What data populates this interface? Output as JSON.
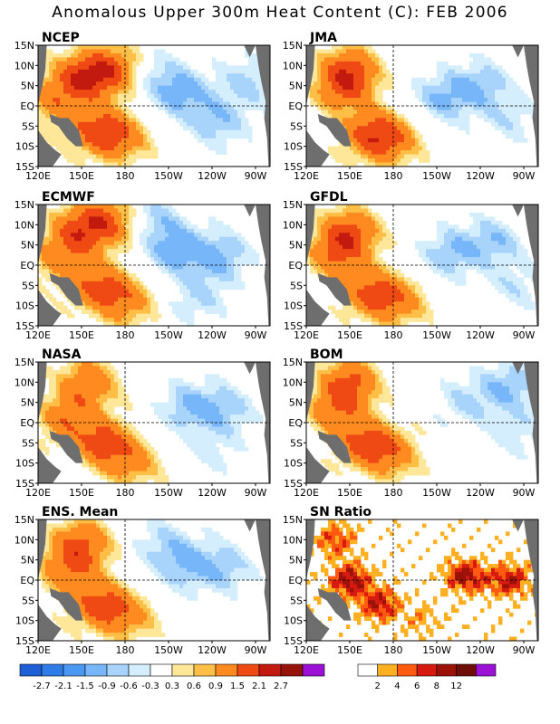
{
  "title": "Anomalous Upper 300m Heat Content (C): FEB 2006",
  "chart_data": [
    {
      "type": "heatmap",
      "title": "NCEP",
      "xticks": [
        "120E",
        "150E",
        "180",
        "150W",
        "120W",
        "90W"
      ],
      "yticks": [
        "15N",
        "10N",
        "5N",
        "EQ",
        "5S",
        "10S",
        "15S"
      ],
      "xlim": [
        120,
        280
      ],
      "ylim": [
        -15,
        15
      ],
      "features": [
        {
          "lon": 150,
          "lat": 7,
          "v": 1.8
        },
        {
          "lon": 172,
          "lat": 9,
          "v": 1.6
        },
        {
          "lon": 130,
          "lat": 1,
          "v": 1.0
        },
        {
          "lon": 160,
          "lat": -6,
          "v": 1.5
        },
        {
          "lon": 178,
          "lat": -8,
          "v": 1.1
        },
        {
          "lon": 220,
          "lat": 3,
          "v": -1.0
        },
        {
          "lon": 245,
          "lat": -4,
          "v": -0.8
        },
        {
          "lon": 200,
          "lat": 8,
          "v": -0.6
        },
        {
          "lon": 265,
          "lat": 6,
          "v": -0.7
        }
      ]
    },
    {
      "type": "heatmap",
      "title": "JMA",
      "xticks": [
        "120E",
        "150E",
        "180",
        "150W",
        "120W",
        "90W"
      ],
      "yticks": [
        "15N",
        "10N",
        "5N",
        "EQ",
        "5S",
        "10S",
        "15S"
      ],
      "xlim": [
        120,
        280
      ],
      "ylim": [
        -15,
        15
      ],
      "features": [
        {
          "lon": 150,
          "lat": 9,
          "v": 1.5
        },
        {
          "lon": 145,
          "lat": 4,
          "v": 1.2
        },
        {
          "lon": 165,
          "lat": -7,
          "v": 1.6
        },
        {
          "lon": 180,
          "lat": -9,
          "v": 1.0
        },
        {
          "lon": 215,
          "lat": 2,
          "v": -0.9
        },
        {
          "lon": 240,
          "lat": 5,
          "v": -0.8
        },
        {
          "lon": 260,
          "lat": -3,
          "v": -0.5
        }
      ]
    },
    {
      "type": "heatmap",
      "title": "ECMWF",
      "xticks": [
        "120E",
        "150E",
        "180",
        "150W",
        "120W",
        "90W"
      ],
      "yticks": [
        "15N",
        "10N",
        "5N",
        "EQ",
        "5S",
        "10S",
        "15S"
      ],
      "xlim": [
        120,
        280
      ],
      "ylim": [
        -15,
        15
      ],
      "features": [
        {
          "lon": 150,
          "lat": 9,
          "v": 1.6
        },
        {
          "lon": 170,
          "lat": 11,
          "v": 1.3
        },
        {
          "lon": 135,
          "lat": 2,
          "v": 1.1
        },
        {
          "lon": 160,
          "lat": -5,
          "v": 1.4
        },
        {
          "lon": 180,
          "lat": -9,
          "v": 1.2
        },
        {
          "lon": 215,
          "lat": 4,
          "v": -1.1
        },
        {
          "lon": 245,
          "lat": 2,
          "v": -1.0
        },
        {
          "lon": 230,
          "lat": -8,
          "v": -0.6
        },
        {
          "lon": 200,
          "lat": 12,
          "v": -0.7
        }
      ]
    },
    {
      "type": "heatmap",
      "title": "GFDL",
      "xticks": [
        "120E",
        "150E",
        "180",
        "150W",
        "120W",
        "90W"
      ],
      "yticks": [
        "15N",
        "10N",
        "5N",
        "EQ",
        "5S",
        "10S",
        "15S"
      ],
      "xlim": [
        120,
        280
      ],
      "ylim": [
        -15,
        15
      ],
      "features": [
        {
          "lon": 150,
          "lat": 8,
          "v": 1.7
        },
        {
          "lon": 140,
          "lat": 2,
          "v": 1.2
        },
        {
          "lon": 165,
          "lat": -7,
          "v": 1.5
        },
        {
          "lon": 185,
          "lat": -9,
          "v": 1.0
        },
        {
          "lon": 220,
          "lat": 3,
          "v": -0.9
        },
        {
          "lon": 250,
          "lat": 6,
          "v": -0.8
        },
        {
          "lon": 265,
          "lat": -5,
          "v": -0.5
        }
      ]
    },
    {
      "type": "heatmap",
      "title": "NASA",
      "xticks": [
        "120E",
        "150E",
        "180",
        "150W",
        "120W",
        "90W"
      ],
      "yticks": [
        "15N",
        "10N",
        "5N",
        "EQ",
        "5S",
        "10S",
        "15S"
      ],
      "xlim": [
        120,
        280
      ],
      "ylim": [
        -15,
        15
      ],
      "features": [
        {
          "lon": 155,
          "lat": 10,
          "v": 1.4
        },
        {
          "lon": 140,
          "lat": 1,
          "v": 1.3
        },
        {
          "lon": 165,
          "lat": -5,
          "v": 1.6
        },
        {
          "lon": 185,
          "lat": -10,
          "v": 1.0
        },
        {
          "lon": 225,
          "lat": 4,
          "v": -0.9
        },
        {
          "lon": 250,
          "lat": 3,
          "v": -0.7
        },
        {
          "lon": 240,
          "lat": -7,
          "v": -0.4
        }
      ]
    },
    {
      "type": "heatmap",
      "title": "BOM",
      "xticks": [
        "120E",
        "150E",
        "180",
        "150W",
        "120W",
        "90W"
      ],
      "yticks": [
        "15N",
        "10N",
        "5N",
        "EQ",
        "5S",
        "10S",
        "15S"
      ],
      "xlim": [
        120,
        280
      ],
      "ylim": [
        -15,
        15
      ],
      "features": [
        {
          "lon": 150,
          "lat": 10,
          "v": 1.6
        },
        {
          "lon": 140,
          "lat": 3,
          "v": 1.2
        },
        {
          "lon": 160,
          "lat": -5,
          "v": 1.5
        },
        {
          "lon": 180,
          "lat": -8,
          "v": 1.1
        },
        {
          "lon": 230,
          "lat": 5,
          "v": -0.6
        },
        {
          "lon": 260,
          "lat": 9,
          "v": -0.9
        },
        {
          "lon": 265,
          "lat": -2,
          "v": -0.5
        }
      ]
    },
    {
      "type": "heatmap",
      "title": "ENS. Mean",
      "xticks": [
        "120E",
        "150E",
        "180",
        "150W",
        "120W",
        "90W"
      ],
      "yticks": [
        "15N",
        "10N",
        "5N",
        "EQ",
        "5S",
        "10S",
        "15S"
      ],
      "xlim": [
        120,
        280
      ],
      "ylim": [
        -15,
        15
      ],
      "features": [
        {
          "lon": 150,
          "lat": 9,
          "v": 1.6
        },
        {
          "lon": 140,
          "lat": 2,
          "v": 1.2
        },
        {
          "lon": 162,
          "lat": -6,
          "v": 1.5
        },
        {
          "lon": 182,
          "lat": -9,
          "v": 1.0
        },
        {
          "lon": 220,
          "lat": 4,
          "v": -0.9
        },
        {
          "lon": 248,
          "lat": 3,
          "v": -0.8
        },
        {
          "lon": 205,
          "lat": 10,
          "v": -0.5
        }
      ]
    },
    {
      "type": "heatmap",
      "title": "SN Ratio",
      "xticks": [
        "120E",
        "150E",
        "180",
        "150W",
        "120W",
        "90W"
      ],
      "yticks": [
        "15N",
        "10N",
        "5N",
        "EQ",
        "5S",
        "10S",
        "15S"
      ],
      "xlim": [
        120,
        280
      ],
      "ylim": [
        -15,
        15
      ],
      "features": [
        {
          "lon": 150,
          "lat": 0,
          "v": 9
        },
        {
          "lon": 170,
          "lat": -6,
          "v": 8
        },
        {
          "lon": 230,
          "lat": 1,
          "v": 9
        },
        {
          "lon": 260,
          "lat": 0,
          "v": 8
        },
        {
          "lon": 140,
          "lat": 10,
          "v": 6
        },
        {
          "lon": 200,
          "lat": -10,
          "v": 3
        }
      ]
    }
  ],
  "colorbars": [
    {
      "labels": [
        "-2.7",
        "-2.1",
        "-1.5",
        "-0.9",
        "-0.6",
        "-0.3",
        "0.3",
        "0.6",
        "0.9",
        "1.5",
        "2.1",
        "2.7"
      ],
      "colors": [
        "#1f5fd6",
        "#2f7ce6",
        "#4b98f2",
        "#78b6fa",
        "#a8d4fc",
        "#d4eefe",
        "#ffffff",
        "#ffe79a",
        "#ffbf47",
        "#ff8a1f",
        "#f04a14",
        "#c31a10",
        "#961308",
        "#9b12d6"
      ]
    },
    {
      "labels": [
        "2",
        "4",
        "6",
        "8",
        "12"
      ],
      "colors": [
        "#ffffff",
        "#ffb020",
        "#ff5a10",
        "#d61a10",
        "#9b1208",
        "#6f0e06",
        "#9b12d6"
      ]
    }
  ]
}
